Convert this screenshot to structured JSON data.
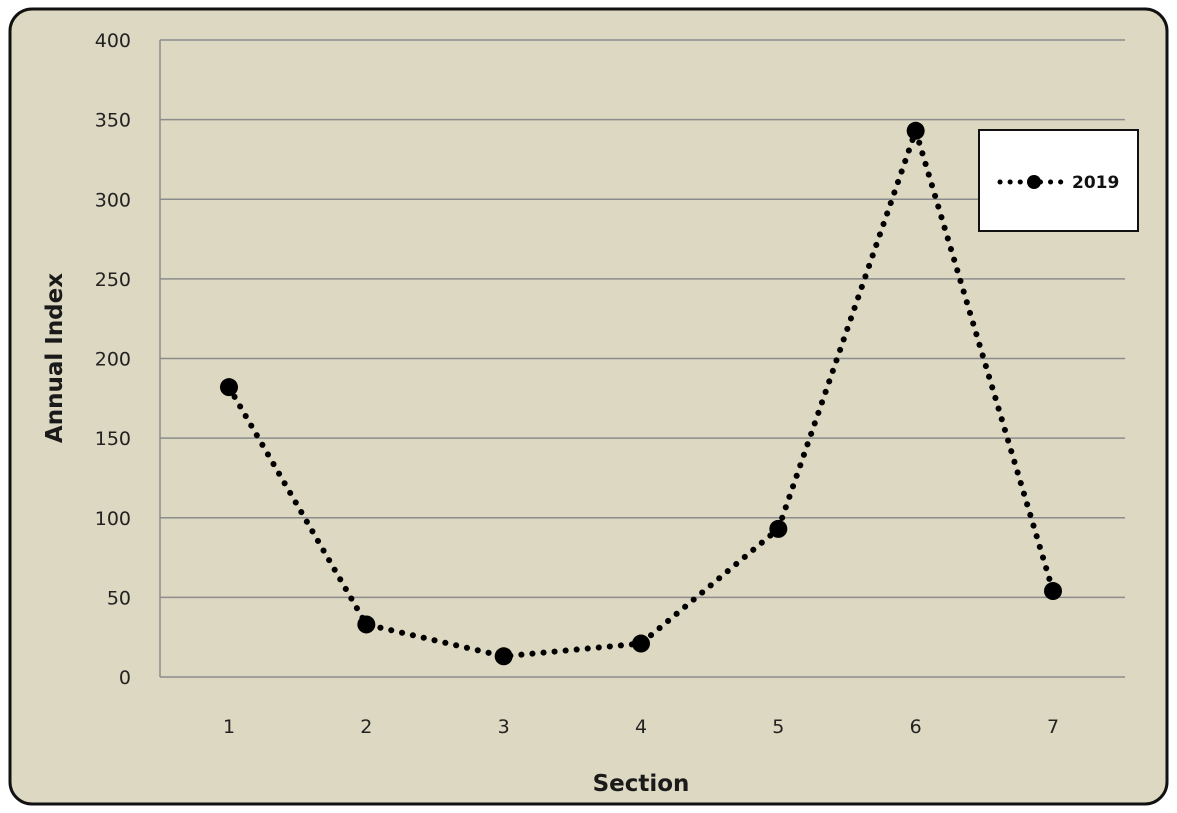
{
  "chart_data": {
    "type": "line",
    "title": "",
    "xlabel": "Section",
    "ylabel": "Annual Index",
    "categories": [
      "1",
      "2",
      "3",
      "4",
      "5",
      "6",
      "7"
    ],
    "series": [
      {
        "name": "2019",
        "values": [
          182,
          33,
          13,
          21,
          93,
          343,
          54
        ]
      }
    ],
    "ylim": [
      0,
      400
    ],
    "yticks": [
      "0",
      "50",
      "100",
      "150",
      "200",
      "250",
      "300",
      "350",
      "400"
    ],
    "grid": "horizontal",
    "legend_position": "top-right",
    "colors": {
      "background": "#ddd8c2",
      "frame": "#111111",
      "gridline": "#8c8c8c",
      "series_line": "#000000",
      "marker": "#000000",
      "legend_bg": "#ffffff"
    }
  }
}
